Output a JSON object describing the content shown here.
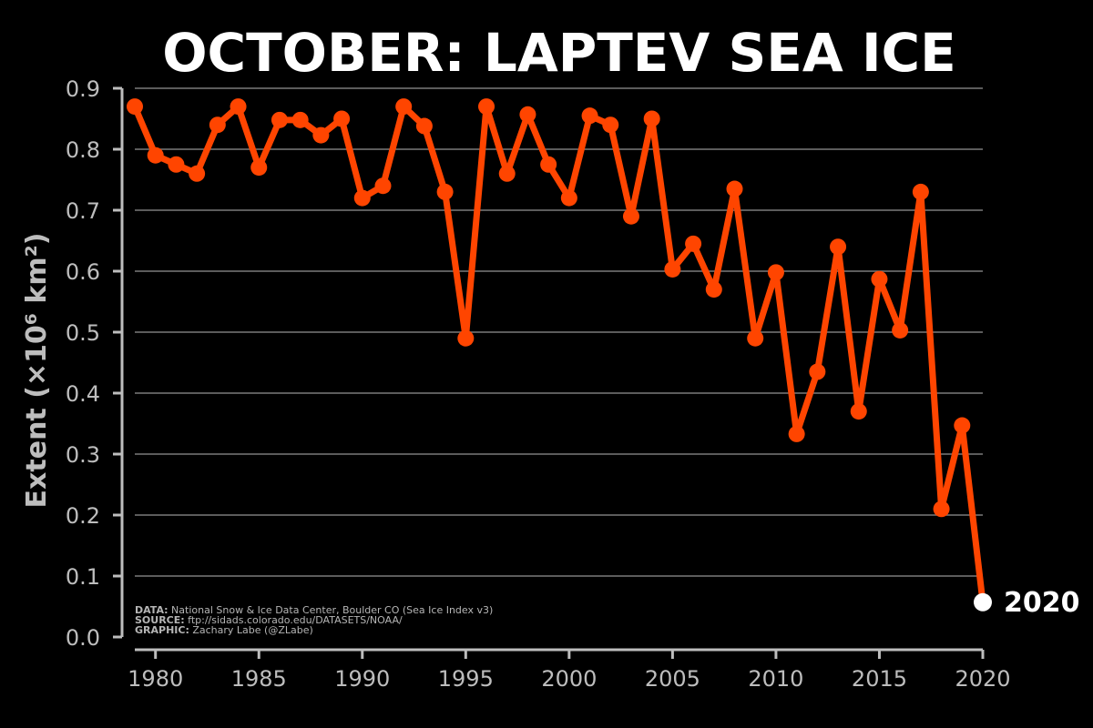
{
  "chart_data": {
    "type": "line",
    "title": "OCTOBER: LAPTEV SEA ICE",
    "ylabel": "Extent (×10⁶ km²)",
    "xlabel": "",
    "xlim": [
      1979,
      2020
    ],
    "ylim": [
      0.0,
      0.9
    ],
    "x_ticks": [
      1980,
      1985,
      1990,
      1995,
      2000,
      2005,
      2010,
      2015,
      2020
    ],
    "x_tick_labels": [
      "1980",
      "1985",
      "1990",
      "1995",
      "2000",
      "2005",
      "2010",
      "2015",
      "2020"
    ],
    "y_ticks": [
      0.0,
      0.1,
      0.2,
      0.3,
      0.4,
      0.5,
      0.6,
      0.7,
      0.8,
      0.9
    ],
    "y_tick_labels": [
      "0.0",
      "0.1",
      "0.2",
      "0.3",
      "0.4",
      "0.5",
      "0.6",
      "0.7",
      "0.8",
      "0.9"
    ],
    "grid": "horizontal",
    "series": [
      {
        "x": [
          1979,
          1980,
          1981,
          1982,
          1983,
          1984,
          1985,
          1986,
          1987,
          1988,
          1989,
          1990,
          1991,
          1992,
          1993,
          1994,
          1995,
          1996,
          1997,
          1998,
          1999,
          2000,
          2001,
          2002,
          2003,
          2004,
          2005,
          2006,
          2007,
          2008,
          2009,
          2010,
          2011,
          2012,
          2013,
          2014,
          2015,
          2016,
          2017,
          2018,
          2019,
          2020
        ],
        "values": [
          0.87,
          0.79,
          0.775,
          0.76,
          0.84,
          0.87,
          0.77,
          0.848,
          0.848,
          0.823,
          0.85,
          0.72,
          0.74,
          0.87,
          0.838,
          0.73,
          0.49,
          0.87,
          0.76,
          0.857,
          0.775,
          0.72,
          0.855,
          0.84,
          0.69,
          0.85,
          0.603,
          0.645,
          0.57,
          0.735,
          0.49,
          0.598,
          0.333,
          0.435,
          0.64,
          0.37,
          0.587,
          0.503,
          0.73,
          0.21,
          0.347,
          0.057
        ],
        "color": "#ff4500"
      }
    ],
    "highlight": {
      "label": "2020",
      "x": 2020,
      "value": 0.057,
      "color": "#ffffff"
    },
    "credits": [
      {
        "key": "DATA:",
        "text": " National Snow & Ice Data Center, Boulder CO (Sea Ice Index v3)"
      },
      {
        "key": "SOURCE:",
        "text": " ftp://sidads.colorado.edu/DATASETS/NOAA/"
      },
      {
        "key": "GRAPHIC:",
        "text": " Zachary Labe (@ZLabe)"
      }
    ],
    "colors": {
      "background": "#000000",
      "axis": "#bdbdbd",
      "grid": "#7a7a7a",
      "line": "#ff4500"
    }
  }
}
